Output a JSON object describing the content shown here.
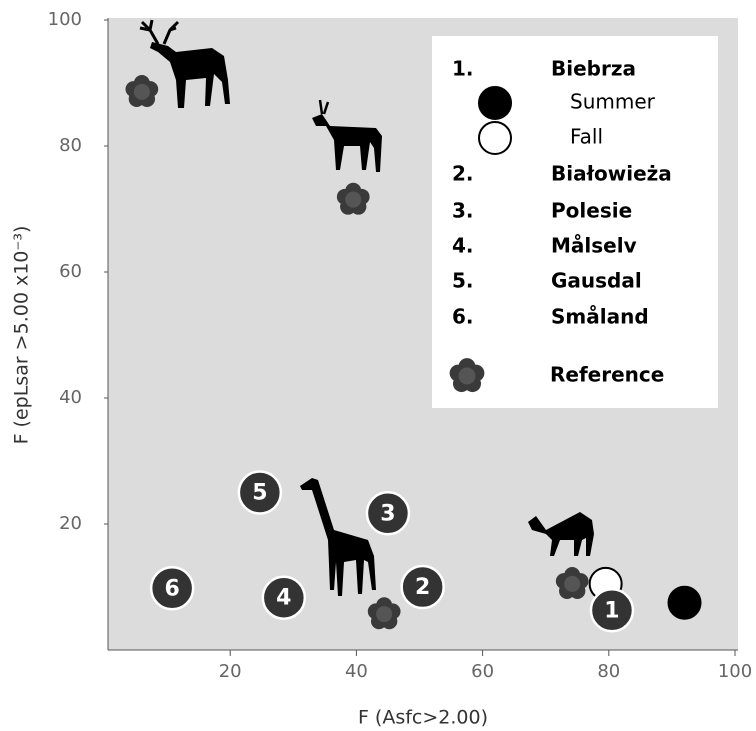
{
  "chart_data": {
    "type": "scatter",
    "xlabel": "F (Asfc>2.00)",
    "ylabel": "F (epLsar >5.00 x10⁻³)",
    "xlim": [
      0,
      100
    ],
    "ylim": [
      0,
      100
    ],
    "xticks": [
      20,
      40,
      60,
      80,
      100
    ],
    "yticks": [
      20,
      40,
      60,
      80,
      100
    ],
    "series": [
      {
        "name": "Summer",
        "color": "#000000",
        "x": [
          92
        ],
        "values": [
          7.5
        ]
      },
      {
        "name": "Fall",
        "color": "#ffffff",
        "x": [
          79.5
        ],
        "values": [
          10.5
        ]
      },
      {
        "name": "Reference",
        "color": "#3a3a3a",
        "x": [
          6,
          39.5,
          44.4,
          74.2
        ],
        "values": [
          88.6,
          71.5,
          5.7,
          10.5
        ]
      },
      {
        "color": "#333333",
        "labels": [
          "1",
          "2",
          "3",
          "4",
          "5",
          "6"
        ],
        "x": [
          80.5,
          50.5,
          45,
          28.5,
          24.7,
          10.8
        ],
        "values": [
          6.3,
          10,
          21.7,
          8.3,
          25,
          9.8
        ]
      }
    ],
    "legend": [
      {
        "number": "1.",
        "name": "Biebrza"
      },
      {
        "number": "2.",
        "name": "Białowieża"
      },
      {
        "number": "3.",
        "name": "Polesie"
      },
      {
        "number": "4.",
        "name": "Målselv"
      },
      {
        "number": "5.",
        "name": "Gausdal"
      },
      {
        "number": "6.",
        "name": "Småland"
      }
    ]
  }
}
